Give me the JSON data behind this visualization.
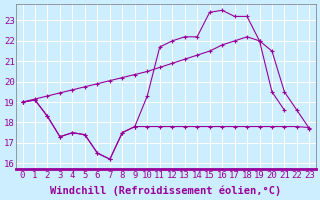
{
  "xlabel": "Windchill (Refroidissement éolien,°C)",
  "line_color": "#990099",
  "background_color": "#cceeff",
  "grid_color": "#ffffff",
  "xlim": [
    -0.5,
    23.5
  ],
  "ylim": [
    15.7,
    23.8
  ],
  "xticks": [
    0,
    1,
    2,
    3,
    4,
    5,
    6,
    7,
    8,
    9,
    10,
    11,
    12,
    13,
    14,
    15,
    16,
    17,
    18,
    19,
    20,
    21,
    22,
    23
  ],
  "yticks": [
    16,
    17,
    18,
    19,
    20,
    21,
    22,
    23
  ],
  "line1_x": [
    0,
    1,
    2,
    3,
    4,
    5,
    6,
    7,
    8,
    9,
    10,
    11,
    12,
    13,
    14,
    15,
    16,
    17,
    18,
    19,
    20,
    21,
    22,
    23
  ],
  "line1_y": [
    19.0,
    19.1,
    18.3,
    17.3,
    17.5,
    17.4,
    16.5,
    16.2,
    17.5,
    17.8,
    17.8,
    17.8,
    17.8,
    17.8,
    17.8,
    17.8,
    17.8,
    17.8,
    17.8,
    17.8,
    17.8,
    17.8,
    17.8,
    17.75
  ],
  "line2_x": [
    0,
    1,
    2,
    3,
    4,
    5,
    6,
    7,
    8,
    9,
    10,
    11,
    12,
    13,
    14,
    15,
    16,
    17,
    18,
    19,
    20,
    21
  ],
  "line2_y": [
    19.0,
    19.1,
    18.3,
    17.3,
    17.5,
    17.4,
    16.5,
    16.2,
    17.5,
    17.8,
    19.3,
    21.7,
    22.0,
    22.2,
    22.2,
    23.4,
    23.5,
    23.2,
    23.2,
    22.0,
    19.5,
    18.6
  ],
  "line3_x": [
    0,
    1,
    2,
    3,
    4,
    5,
    6,
    7,
    8,
    9,
    10,
    11,
    12,
    13,
    14,
    15,
    16,
    17,
    18,
    19,
    20,
    21,
    22,
    23
  ],
  "line3_y": [
    19.0,
    19.15,
    19.3,
    19.45,
    19.6,
    19.75,
    19.9,
    20.05,
    20.2,
    20.35,
    20.5,
    20.7,
    20.9,
    21.1,
    21.3,
    21.5,
    21.8,
    22.0,
    22.2,
    22.0,
    21.5,
    19.5,
    18.6,
    17.7
  ],
  "fontsize_ticks": 6.5,
  "fontsize_label": 7.5
}
